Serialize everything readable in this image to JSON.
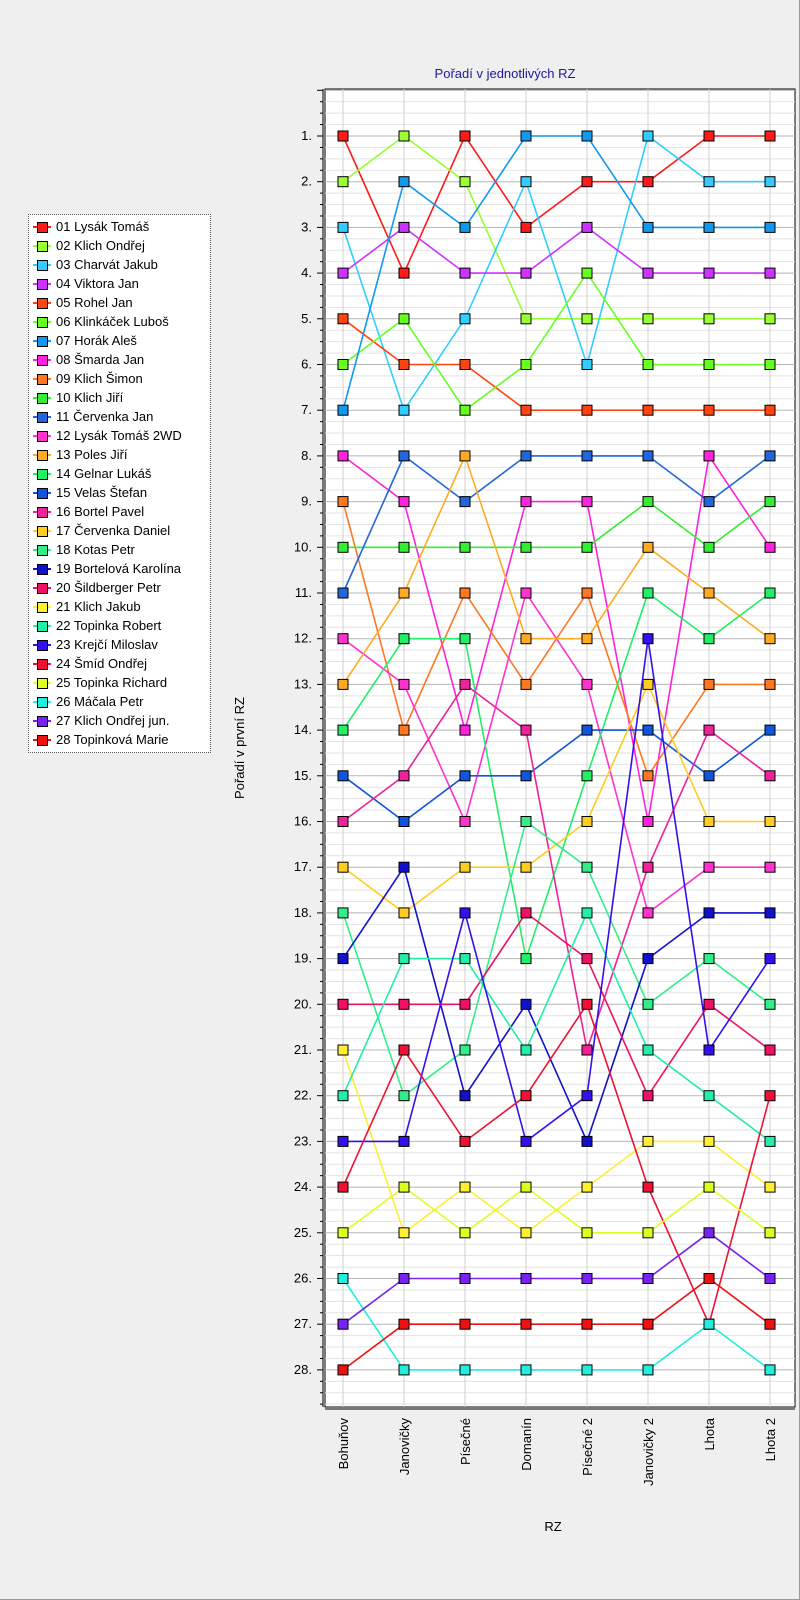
{
  "chart_data": {
    "type": "line",
    "title": "Pořadí v jednotlivých RZ",
    "xlabel": "RZ",
    "ylabel": "Pořadí v první RZ",
    "categories": [
      "Bohuňov",
      "Janovičky",
      "Písečné",
      "Domanín",
      "Písečné 2",
      "Janovičky 2",
      "Lhota",
      "Lhota 2"
    ],
    "y_reversed": true,
    "ylim": [
      0,
      29
    ],
    "y_ticks": [
      "1.",
      "2.",
      "3.",
      "4.",
      "5.",
      "6.",
      "7.",
      "8.",
      "9.",
      "10.",
      "11.",
      "12.",
      "13.",
      "14.",
      "15.",
      "16.",
      "17.",
      "18.",
      "19.",
      "20.",
      "21.",
      "22.",
      "23.",
      "24.",
      "25.",
      "26.",
      "27.",
      "28."
    ],
    "grid": true,
    "legend_position": "left",
    "series": [
      {
        "name": "01 Lysák Tomáš",
        "color": "#ff1a1a",
        "values": [
          1,
          4,
          1,
          3,
          2,
          2,
          1,
          1
        ]
      },
      {
        "name": "02 Klich Ondřej",
        "color": "#99ff33",
        "values": [
          2,
          1,
          2,
          5,
          5,
          5,
          5,
          5
        ]
      },
      {
        "name": "03 Charvát Jakub",
        "color": "#33ccff",
        "values": [
          3,
          7,
          5,
          2,
          6,
          1,
          2,
          2
        ]
      },
      {
        "name": "04 Viktora Jan",
        "color": "#cc33ff",
        "values": [
          4,
          3,
          4,
          4,
          3,
          4,
          4,
          4
        ]
      },
      {
        "name": "05 Rohel Jan",
        "color": "#ff4411",
        "values": [
          5,
          6,
          6,
          7,
          7,
          7,
          7,
          7
        ]
      },
      {
        "name": "06 Klinkáček Luboš",
        "color": "#66ff22",
        "values": [
          6,
          5,
          7,
          6,
          4,
          6,
          6,
          6
        ]
      },
      {
        "name": "07 Horák Aleš",
        "color": "#1199ee",
        "values": [
          7,
          2,
          3,
          1,
          1,
          3,
          3,
          3
        ]
      },
      {
        "name": "08 Šmarda Jan",
        "color": "#ff22dd",
        "values": [
          8,
          9,
          14,
          9,
          9,
          16,
          8,
          10
        ]
      },
      {
        "name": "09 Klich Šimon",
        "color": "#ff7722",
        "values": [
          9,
          14,
          11,
          13,
          11,
          15,
          13,
          13
        ]
      },
      {
        "name": "10 Klich Jiří",
        "color": "#33ee33",
        "values": [
          10,
          10,
          10,
          10,
          10,
          9,
          10,
          9
        ]
      },
      {
        "name": "11 Červenka Jan",
        "color": "#2266dd",
        "values": [
          11,
          8,
          9,
          8,
          8,
          8,
          9,
          8
        ]
      },
      {
        "name": "12 Lysák Tomáš 2WD",
        "color": "#ff33cc",
        "values": [
          12,
          13,
          16,
          11,
          13,
          18,
          17,
          17
        ]
      },
      {
        "name": "13 Poles Jiří",
        "color": "#ffaa22",
        "values": [
          13,
          11,
          8,
          12,
          12,
          10,
          11,
          12
        ]
      },
      {
        "name": "14 Gelnar Lukáš",
        "color": "#22ee66",
        "values": [
          14,
          12,
          12,
          19,
          15,
          11,
          12,
          11
        ]
      },
      {
        "name": "15 Velas Štefan",
        "color": "#1155dd",
        "values": [
          15,
          16,
          15,
          15,
          14,
          14,
          15,
          14
        ]
      },
      {
        "name": "16 Bortel Pavel",
        "color": "#ee2299",
        "values": [
          16,
          15,
          13,
          14,
          21,
          17,
          14,
          15
        ]
      },
      {
        "name": "17 Červenka Daniel",
        "color": "#ffcc22",
        "values": [
          17,
          18,
          17,
          17,
          16,
          13,
          16,
          16
        ]
      },
      {
        "name": "18 Kotas Petr",
        "color": "#33ee88",
        "values": [
          18,
          22,
          21,
          16,
          17,
          20,
          19,
          20
        ]
      },
      {
        "name": "19 Bortelová Karolína",
        "color": "#1111cc",
        "values": [
          19,
          17,
          22,
          20,
          23,
          19,
          18,
          18
        ]
      },
      {
        "name": "20 Šildberger Petr",
        "color": "#ee1166",
        "values": [
          20,
          20,
          20,
          18,
          19,
          22,
          20,
          21
        ]
      },
      {
        "name": "21 Klich Jakub",
        "color": "#ffee33",
        "values": [
          21,
          25,
          24,
          25,
          24,
          23,
          23,
          24
        ]
      },
      {
        "name": "22 Topinka Robert",
        "color": "#22eeaa",
        "values": [
          22,
          19,
          19,
          21,
          18,
          21,
          22,
          23
        ]
      },
      {
        "name": "23 Krejčí Miloslav",
        "color": "#3311ee",
        "values": [
          23,
          23,
          18,
          23,
          22,
          12,
          21,
          19
        ]
      },
      {
        "name": "24 Šmíd Ondřej",
        "color": "#ee1133",
        "values": [
          24,
          21,
          23,
          22,
          20,
          24,
          27,
          22
        ]
      },
      {
        "name": "25 Topinka Richard",
        "color": "#ddff22",
        "values": [
          25,
          24,
          25,
          24,
          25,
          25,
          24,
          25
        ]
      },
      {
        "name": "26 Máčala Petr",
        "color": "#22eedd",
        "values": [
          26,
          28,
          28,
          28,
          28,
          28,
          27,
          28
        ]
      },
      {
        "name": "27 Klich Ondřej jun.",
        "color": "#7722ee",
        "values": [
          27,
          26,
          26,
          26,
          26,
          26,
          25,
          26
        ]
      },
      {
        "name": "28 Topinková Marie",
        "color": "#ee1111",
        "values": [
          28,
          27,
          27,
          27,
          27,
          27,
          26,
          27
        ]
      }
    ]
  }
}
